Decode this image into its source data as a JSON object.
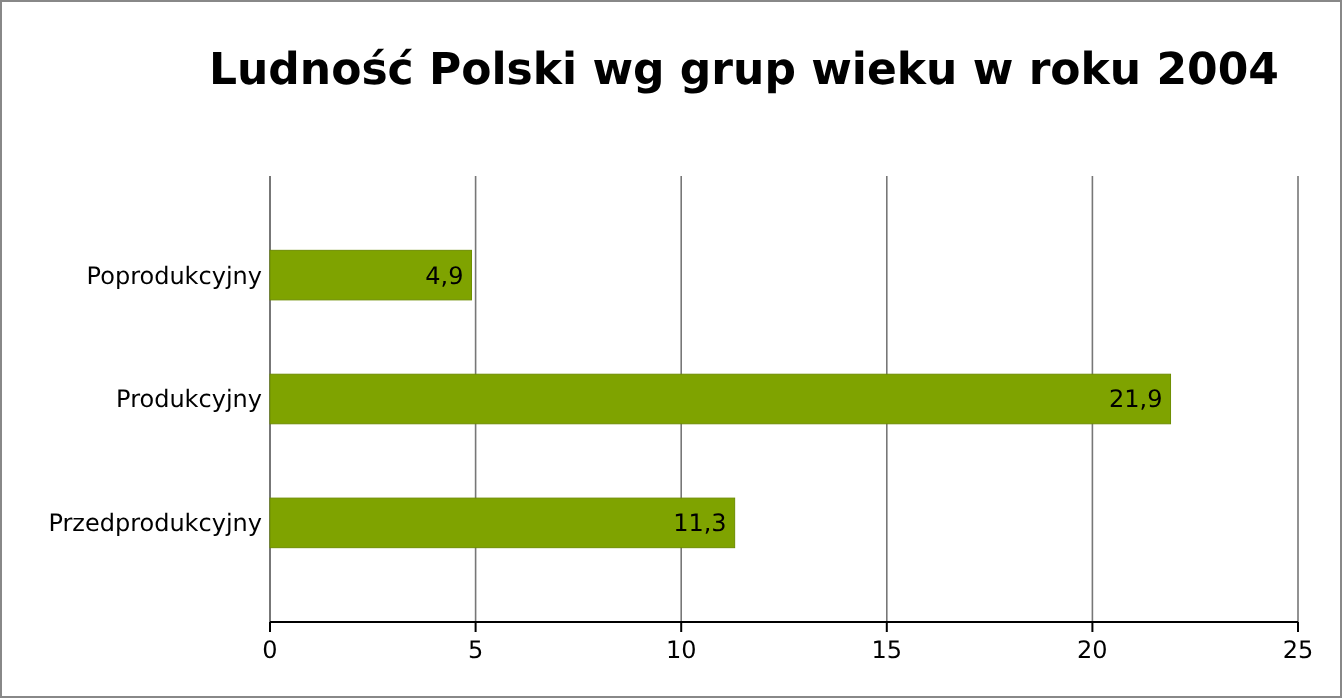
{
  "chart_data": {
    "type": "bar",
    "orientation": "horizontal",
    "title": "Ludność Polski wg grup wieku w roku 2004",
    "categories": [
      "Poprodukcyjny",
      "Produkcyjny",
      "Przedprodukcyjny"
    ],
    "values": [
      4.9,
      21.9,
      11.3
    ],
    "value_labels": [
      "4,9",
      "21,9",
      "11,3"
    ],
    "color": "#7fa300",
    "xlim": [
      0,
      25
    ],
    "xticks": [
      0,
      5,
      10,
      15,
      20,
      25
    ],
    "grid": "x"
  }
}
